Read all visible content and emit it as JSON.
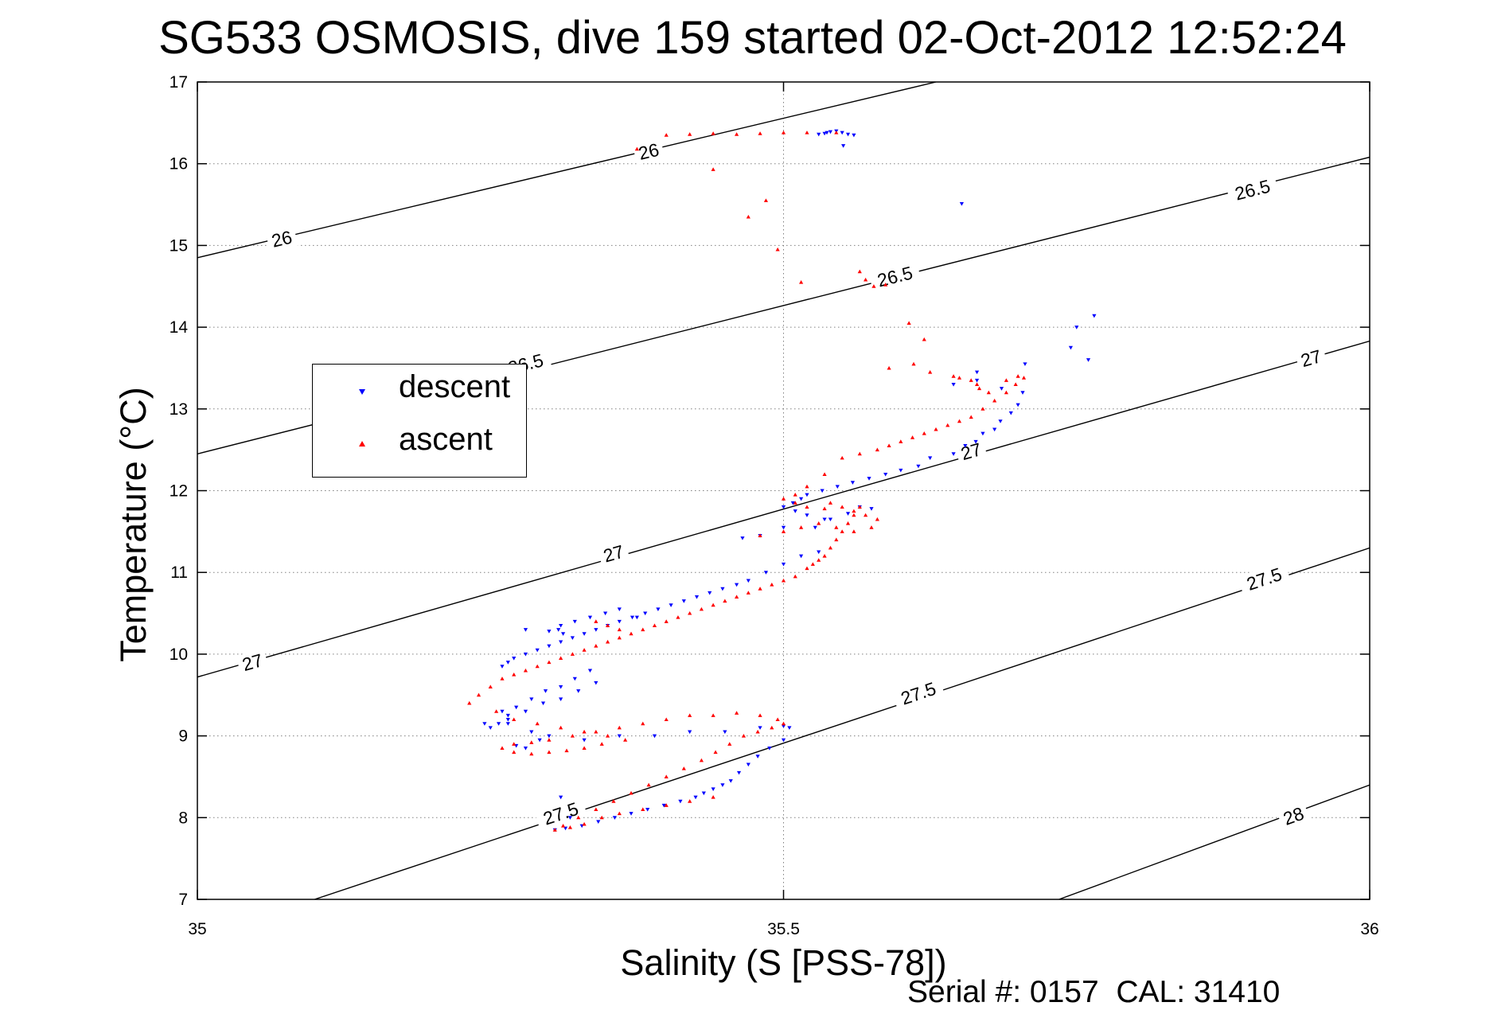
{
  "title": "SG533 OSMOSIS, dive 159 started 02-Oct-2012 12:52:24",
  "footer": "Serial #: 0157  CAL: 31410",
  "legend": {
    "descent": "descent",
    "ascent": "ascent"
  },
  "colors": {
    "descent": "#0000ff",
    "ascent": "#ff0000",
    "contour": "#000000",
    "grid": "#808080"
  },
  "chart_data": {
    "type": "scatter",
    "title": "SG533 OSMOSIS, dive 159 started 02-Oct-2012 12:52:24",
    "xlabel": "Salinity (S [PSS-78])",
    "ylabel": "Temperature (°C)",
    "xlim": [
      35,
      36
    ],
    "ylim": [
      7,
      17
    ],
    "xticks": [
      "35",
      "35.5",
      "36"
    ],
    "yticks": [
      "7",
      "8",
      "9",
      "10",
      "11",
      "12",
      "13",
      "14",
      "15",
      "16",
      "17"
    ],
    "grid": true,
    "legend_position": "left",
    "contours": [
      {
        "level": "26",
        "points": [
          [
            35,
            14.85
          ],
          [
            35.63,
            17.0
          ]
        ],
        "labels": [
          {
            "text": "26",
            "x": 35.072,
            "y": 15.08
          },
          {
            "text": "26",
            "x": 35.385,
            "y": 16.15
          }
        ]
      },
      {
        "level": "26.5",
        "points": [
          [
            35,
            12.45
          ],
          [
            36,
            16.08
          ]
        ],
        "labels": [
          {
            "text": "26.5",
            "x": 35.28,
            "y": 13.55
          },
          {
            "text": "26.5",
            "x": 35.595,
            "y": 14.62
          },
          {
            "text": "26.5",
            "x": 35.9,
            "y": 15.68
          }
        ]
      },
      {
        "level": "27",
        "points": [
          [
            35,
            9.72
          ],
          [
            36,
            13.83
          ]
        ],
        "labels": [
          {
            "text": "27",
            "x": 35.047,
            "y": 9.9
          },
          {
            "text": "27",
            "x": 35.355,
            "y": 11.23
          },
          {
            "text": "27",
            "x": 35.66,
            "y": 12.48
          },
          {
            "text": "27",
            "x": 35.95,
            "y": 13.62
          }
        ]
      },
      {
        "level": "27.5",
        "points": [
          [
            35.1,
            7.0
          ],
          [
            36,
            11.3
          ]
        ],
        "labels": [
          {
            "text": "27.5",
            "x": 35.31,
            "y": 8.05
          },
          {
            "text": "27.5",
            "x": 35.615,
            "y": 9.52
          },
          {
            "text": "27.5",
            "x": 35.91,
            "y": 10.92
          }
        ]
      },
      {
        "level": "28",
        "points": [
          [
            35.735,
            7.0
          ],
          [
            36,
            8.4
          ]
        ],
        "labels": [
          {
            "text": "28",
            "x": 35.935,
            "y": 8.02
          }
        ]
      }
    ],
    "series": [
      {
        "name": "descent",
        "marker": "triangle-down",
        "x": [
          35.53,
          35.535,
          35.54,
          35.545,
          35.55,
          35.555,
          35.56,
          35.551,
          35.537,
          35.652,
          35.765,
          35.75,
          35.745,
          35.76,
          35.706,
          35.665,
          35.645,
          35.665,
          35.686,
          35.704,
          35.7,
          35.694,
          35.685,
          35.68,
          35.67,
          35.664,
          35.655,
          35.645,
          35.625,
          35.615,
          35.6,
          35.587,
          35.573,
          35.559,
          35.546,
          35.533,
          35.52,
          35.515,
          35.508,
          35.5,
          35.51,
          35.52,
          35.535,
          35.5,
          35.48,
          35.465,
          35.527,
          35.54,
          35.555,
          35.565,
          35.575,
          35.53,
          35.515,
          35.5,
          35.485,
          35.47,
          35.46,
          35.448,
          35.437,
          35.426,
          35.415,
          35.404,
          35.393,
          35.382,
          35.371,
          35.36,
          35.35,
          35.34,
          35.33,
          35.32,
          35.31,
          35.3,
          35.29,
          35.28,
          35.27,
          35.265,
          35.26,
          35.335,
          35.322,
          35.31,
          35.297,
          35.285,
          35.272,
          35.26,
          35.34,
          35.325,
          35.31,
          35.295,
          35.28,
          35.265,
          35.265,
          35.257,
          35.25,
          35.245,
          35.285,
          35.3,
          35.33,
          35.36,
          35.39,
          35.42,
          35.45,
          35.48,
          35.5,
          35.505,
          35.5,
          35.488,
          35.478,
          35.47,
          35.462,
          35.455,
          35.448,
          35.44,
          35.432,
          35.425,
          35.412,
          35.398,
          35.384,
          35.37,
          35.356,
          35.342,
          35.328,
          35.314,
          35.305,
          35.318,
          35.31,
          35.375,
          35.36,
          35.348,
          35.335,
          35.322,
          35.31,
          35.308,
          35.312,
          35.28,
          35.3,
          35.265,
          35.272,
          35.28,
          35.292
        ],
        "y": [
          16.36,
          16.37,
          16.39,
          16.4,
          16.38,
          16.36,
          16.35,
          16.22,
          16.38,
          15.51,
          14.14,
          14.0,
          13.75,
          13.6,
          13.55,
          13.45,
          13.3,
          13.35,
          13.25,
          13.2,
          13.05,
          12.95,
          12.85,
          12.75,
          12.7,
          12.6,
          12.55,
          12.45,
          12.4,
          12.3,
          12.25,
          12.2,
          12.15,
          12.1,
          12.05,
          12.0,
          11.95,
          11.9,
          11.85,
          11.8,
          11.75,
          11.7,
          11.65,
          11.55,
          11.45,
          11.42,
          11.55,
          11.65,
          11.72,
          11.8,
          11.78,
          11.25,
          11.2,
          11.1,
          11.0,
          10.9,
          10.85,
          10.8,
          10.75,
          10.7,
          10.65,
          10.6,
          10.55,
          10.5,
          10.45,
          10.4,
          10.35,
          10.3,
          10.25,
          10.2,
          10.15,
          10.1,
          10.05,
          10.0,
          9.95,
          9.9,
          9.85,
          9.8,
          9.7,
          9.6,
          9.55,
          9.45,
          9.35,
          9.3,
          9.65,
          9.55,
          9.45,
          9.4,
          9.3,
          9.25,
          9.2,
          9.15,
          9.1,
          9.15,
          9.05,
          9.0,
          8.95,
          9.0,
          9.0,
          9.05,
          9.05,
          9.1,
          9.12,
          9.1,
          8.95,
          8.85,
          8.75,
          8.65,
          8.55,
          8.45,
          8.4,
          8.35,
          8.3,
          8.25,
          8.2,
          8.15,
          8.1,
          8.05,
          8.0,
          7.95,
          7.9,
          7.87,
          7.85,
          8.0,
          8.25,
          10.45,
          10.55,
          10.5,
          10.45,
          10.4,
          10.35,
          10.3,
          10.25,
          10.3,
          10.28,
          9.15,
          8.88,
          8.85,
          8.95
        ]
      },
      {
        "name": "ascent",
        "marker": "triangle-up",
        "x": [
          35.4,
          35.42,
          35.44,
          35.46,
          35.48,
          35.5,
          35.52,
          35.545,
          35.375,
          35.44,
          35.47,
          35.485,
          35.495,
          35.515,
          35.565,
          35.57,
          35.577,
          35.587,
          35.607,
          35.62,
          35.59,
          35.611,
          35.625,
          35.645,
          35.65,
          35.66,
          35.665,
          35.667,
          35.675,
          35.69,
          35.7,
          35.705,
          35.698,
          35.69,
          35.68,
          35.67,
          35.66,
          35.65,
          35.64,
          35.63,
          35.62,
          35.61,
          35.6,
          35.59,
          35.58,
          35.565,
          35.55,
          35.535,
          35.52,
          35.51,
          35.5,
          35.51,
          35.52,
          35.535,
          35.54,
          35.55,
          35.56,
          35.57,
          35.58,
          35.575,
          35.56,
          35.545,
          35.53,
          35.515,
          35.5,
          35.48,
          35.565,
          35.56,
          35.555,
          35.55,
          35.545,
          35.54,
          35.535,
          35.53,
          35.525,
          35.52,
          35.51,
          35.5,
          35.49,
          35.48,
          35.47,
          35.46,
          35.45,
          35.44,
          35.43,
          35.42,
          35.41,
          35.4,
          35.39,
          35.38,
          35.37,
          35.36,
          35.35,
          35.34,
          35.33,
          35.32,
          35.31,
          35.3,
          35.29,
          35.28,
          35.27,
          35.26,
          35.25,
          35.24,
          35.232,
          35.255,
          35.27,
          35.29,
          35.31,
          35.33,
          35.35,
          35.365,
          35.345,
          35.33,
          35.315,
          35.3,
          35.285,
          35.27,
          35.26,
          35.27,
          35.285,
          35.3,
          35.32,
          35.34,
          35.36,
          35.38,
          35.4,
          35.42,
          35.44,
          35.46,
          35.48,
          35.495,
          35.5,
          35.49,
          35.478,
          35.466,
          35.454,
          35.442,
          35.43,
          35.415,
          35.4,
          35.385,
          35.37,
          35.355,
          35.34,
          35.325,
          35.312,
          35.305,
          35.318,
          35.33,
          35.345,
          35.36,
          35.38,
          35.4,
          35.42,
          35.44,
          35.35,
          35.36,
          35.34
        ],
        "y": [
          16.35,
          16.36,
          16.37,
          16.36,
          16.37,
          16.38,
          16.38,
          16.38,
          16.18,
          15.93,
          15.35,
          15.55,
          14.95,
          14.55,
          14.68,
          14.58,
          14.5,
          14.52,
          14.05,
          13.85,
          13.5,
          13.55,
          13.45,
          13.4,
          13.38,
          13.35,
          13.3,
          13.25,
          13.2,
          13.35,
          13.4,
          13.38,
          13.3,
          13.2,
          13.1,
          13.0,
          12.9,
          12.85,
          12.8,
          12.75,
          12.7,
          12.65,
          12.6,
          12.55,
          12.5,
          12.45,
          12.4,
          12.2,
          12.05,
          11.95,
          11.9,
          11.85,
          11.8,
          11.78,
          11.85,
          11.8,
          11.75,
          11.7,
          11.65,
          11.55,
          11.5,
          11.55,
          11.6,
          11.55,
          11.5,
          11.45,
          11.8,
          11.7,
          11.6,
          11.5,
          11.4,
          11.3,
          11.2,
          11.15,
          11.1,
          11.05,
          10.95,
          10.9,
          10.85,
          10.8,
          10.75,
          10.7,
          10.65,
          10.6,
          10.55,
          10.5,
          10.45,
          10.4,
          10.35,
          10.3,
          10.25,
          10.2,
          10.15,
          10.1,
          10.05,
          10.0,
          9.95,
          9.9,
          9.85,
          9.8,
          9.75,
          9.7,
          9.6,
          9.5,
          9.4,
          9.3,
          9.2,
          9.15,
          9.1,
          9.05,
          9.0,
          8.95,
          8.9,
          8.85,
          8.82,
          8.8,
          8.78,
          8.8,
          8.85,
          8.9,
          8.92,
          8.95,
          9.0,
          9.05,
          9.1,
          9.15,
          9.2,
          9.25,
          9.25,
          9.28,
          9.25,
          9.2,
          9.15,
          9.1,
          9.05,
          9.0,
          8.9,
          8.8,
          8.7,
          8.6,
          8.5,
          8.4,
          8.3,
          8.2,
          8.1,
          8.0,
          7.9,
          7.85,
          7.88,
          7.92,
          8.0,
          8.05,
          8.1,
          8.15,
          8.2,
          8.25,
          10.35,
          10.3,
          10.4
        ]
      }
    ]
  }
}
